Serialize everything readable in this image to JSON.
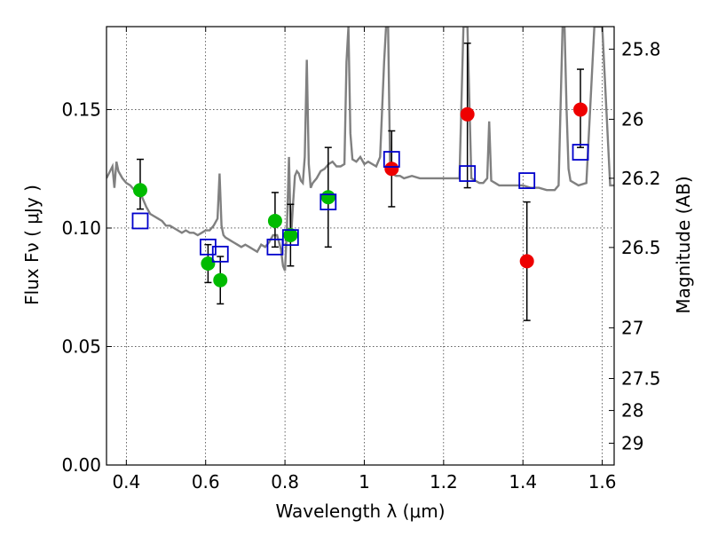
{
  "chart_data": {
    "type": "scatter",
    "title": "",
    "xlabel": "Wavelength  λ (μm)",
    "ylabel": "Flux  Fν  ( μJy )",
    "ylabel_right": "Magnitude (AB)",
    "xlim": [
      0.35,
      1.63
    ],
    "ylim": [
      0.0,
      0.185
    ],
    "grid": true,
    "x_ticks": [
      0.4,
      0.6,
      0.8,
      1.0,
      1.2,
      1.4,
      1.6
    ],
    "x_tick_labels": [
      "0.4",
      "0.6",
      "0.8",
      "1",
      "1.2",
      "1.4",
      "1.6"
    ],
    "y_ticks": [
      0.0,
      0.05,
      0.1,
      0.15
    ],
    "y_tick_labels": [
      "0.00",
      "0.05",
      "0.10",
      "0.15"
    ],
    "right_ticks": [
      {
        "label": "25.8",
        "flux": 0.1755
      },
      {
        "label": "26",
        "flux": 0.1459
      },
      {
        "label": "26.2",
        "flux": 0.121
      },
      {
        "label": "26.5",
        "flux": 0.0918
      },
      {
        "label": "27",
        "flux": 0.0579
      },
      {
        "label": "27.5",
        "flux": 0.0365
      },
      {
        "label": "28",
        "flux": 0.023
      },
      {
        "label": "29",
        "flux": 0.0092
      }
    ],
    "series": [
      {
        "marker": "circle",
        "color": "#00bb00",
        "points": [
          {
            "x": 0.435,
            "y": 0.116,
            "lo": 0.108,
            "hi": 0.129
          },
          {
            "x": 0.606,
            "y": 0.085,
            "lo": 0.077,
            "hi": 0.093
          },
          {
            "x": 0.637,
            "y": 0.078,
            "lo": 0.068,
            "hi": 0.088
          },
          {
            "x": 0.775,
            "y": 0.103,
            "lo": 0.092,
            "hi": 0.115
          },
          {
            "x": 0.814,
            "y": 0.097,
            "lo": 0.084,
            "hi": 0.11
          },
          {
            "x": 0.909,
            "y": 0.113,
            "lo": 0.092,
            "hi": 0.134
          }
        ]
      },
      {
        "marker": "circle",
        "color": "#ee0000",
        "points": [
          {
            "x": 1.069,
            "y": 0.125,
            "lo": 0.109,
            "hi": 0.141
          },
          {
            "x": 1.26,
            "y": 0.148,
            "lo": 0.117,
            "hi": 0.178
          },
          {
            "x": 1.41,
            "y": 0.086,
            "lo": 0.061,
            "hi": 0.111
          },
          {
            "x": 1.545,
            "y": 0.15,
            "lo": 0.134,
            "hi": 0.167
          }
        ]
      },
      {
        "marker": "open-square",
        "color": "#0000cc",
        "points": [
          {
            "x": 0.435,
            "y": 0.103
          },
          {
            "x": 0.606,
            "y": 0.092
          },
          {
            "x": 0.637,
            "y": 0.089
          },
          {
            "x": 0.775,
            "y": 0.092
          },
          {
            "x": 0.814,
            "y": 0.096
          },
          {
            "x": 0.909,
            "y": 0.111
          },
          {
            "x": 1.069,
            "y": 0.129
          },
          {
            "x": 1.26,
            "y": 0.123
          },
          {
            "x": 1.41,
            "y": 0.12
          },
          {
            "x": 1.545,
            "y": 0.132
          }
        ]
      }
    ],
    "spectrum": {
      "color": "#808080",
      "x": [
        0.35,
        0.365,
        0.37,
        0.375,
        0.38,
        0.39,
        0.4,
        0.41,
        0.42,
        0.43,
        0.44,
        0.45,
        0.46,
        0.47,
        0.48,
        0.49,
        0.5,
        0.51,
        0.52,
        0.53,
        0.54,
        0.55,
        0.56,
        0.57,
        0.58,
        0.59,
        0.6,
        0.61,
        0.62,
        0.63,
        0.635,
        0.64,
        0.645,
        0.65,
        0.66,
        0.67,
        0.68,
        0.69,
        0.7,
        0.71,
        0.72,
        0.73,
        0.74,
        0.75,
        0.76,
        0.77,
        0.78,
        0.79,
        0.795,
        0.8,
        0.805,
        0.81,
        0.815,
        0.82,
        0.825,
        0.83,
        0.835,
        0.84,
        0.845,
        0.85,
        0.855,
        0.86,
        0.865,
        0.87,
        0.88,
        0.89,
        0.9,
        0.91,
        0.92,
        0.93,
        0.94,
        0.95,
        0.955,
        0.96,
        0.965,
        0.97,
        0.98,
        0.99,
        1.0,
        1.01,
        1.02,
        1.03,
        1.04,
        1.05,
        1.055,
        1.06,
        1.065,
        1.07,
        1.08,
        1.09,
        1.1,
        1.12,
        1.14,
        1.16,
        1.18,
        1.2,
        1.22,
        1.24,
        1.25,
        1.26,
        1.27,
        1.28,
        1.29,
        1.3,
        1.31,
        1.315,
        1.32,
        1.33,
        1.34,
        1.36,
        1.38,
        1.4,
        1.42,
        1.44,
        1.46,
        1.48,
        1.49,
        1.5,
        1.505,
        1.51,
        1.515,
        1.52,
        1.54,
        1.56,
        1.58,
        1.6,
        1.62,
        1.63
      ],
      "y": [
        0.121,
        0.126,
        0.117,
        0.128,
        0.124,
        0.121,
        0.119,
        0.118,
        0.116,
        0.117,
        0.113,
        0.109,
        0.106,
        0.105,
        0.104,
        0.103,
        0.101,
        0.101,
        0.1,
        0.099,
        0.098,
        0.099,
        0.098,
        0.098,
        0.097,
        0.098,
        0.099,
        0.099,
        0.101,
        0.104,
        0.123,
        0.101,
        0.097,
        0.096,
        0.095,
        0.094,
        0.093,
        0.092,
        0.093,
        0.092,
        0.091,
        0.09,
        0.093,
        0.092,
        0.094,
        0.097,
        0.097,
        0.091,
        0.084,
        0.082,
        0.1,
        0.13,
        0.095,
        0.109,
        0.122,
        0.124,
        0.123,
        0.12,
        0.119,
        0.13,
        0.171,
        0.127,
        0.117,
        0.119,
        0.121,
        0.124,
        0.125,
        0.127,
        0.128,
        0.126,
        0.126,
        0.127,
        0.17,
        0.185,
        0.14,
        0.129,
        0.128,
        0.13,
        0.127,
        0.128,
        0.127,
        0.126,
        0.13,
        0.17,
        0.185,
        0.185,
        0.128,
        0.123,
        0.122,
        0.122,
        0.121,
        0.122,
        0.121,
        0.121,
        0.121,
        0.121,
        0.121,
        0.121,
        0.185,
        0.185,
        0.121,
        0.12,
        0.119,
        0.119,
        0.121,
        0.145,
        0.12,
        0.119,
        0.118,
        0.118,
        0.118,
        0.118,
        0.117,
        0.117,
        0.116,
        0.116,
        0.118,
        0.185,
        0.185,
        0.15,
        0.125,
        0.12,
        0.118,
        0.119,
        0.185,
        0.185,
        0.118,
        0.118
      ]
    }
  }
}
